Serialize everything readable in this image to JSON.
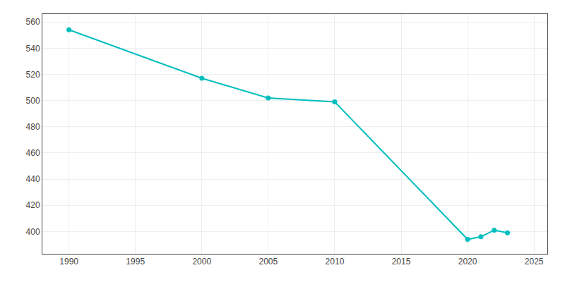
{
  "chart_data": {
    "type": "line",
    "x": [
      1990,
      2000,
      2005,
      2010,
      2020,
      2021,
      2022,
      2023
    ],
    "values": [
      554,
      517,
      502,
      499,
      394,
      396,
      401,
      399
    ],
    "color": "#00BEBE",
    "marker": "circle",
    "xlim": [
      1988,
      2026
    ],
    "ylim": [
      383,
      566
    ],
    "xticks": [
      1990,
      1995,
      2000,
      2005,
      2010,
      2015,
      2020,
      2025
    ],
    "yticks": [
      400,
      420,
      440,
      460,
      480,
      500,
      520,
      540,
      560
    ],
    "grid": true
  }
}
